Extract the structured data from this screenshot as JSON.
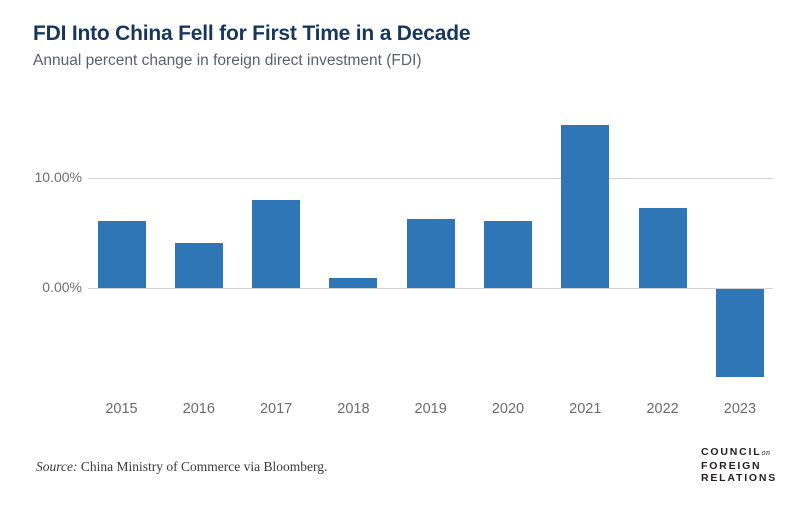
{
  "header": {
    "title": "FDI Into China Fell for First Time in a Decade",
    "subtitle": "Annual percent change in foreign direct investment (FDI)"
  },
  "chart_data": {
    "type": "bar",
    "title": "FDI Into China Fell for First Time in a Decade",
    "subtitle": "Annual percent change in foreign direct investment (FDI)",
    "categories": [
      "2015",
      "2016",
      "2017",
      "2018",
      "2019",
      "2020",
      "2021",
      "2022",
      "2023"
    ],
    "values": [
      6.1,
      4.1,
      8.0,
      0.9,
      6.3,
      6.1,
      14.8,
      7.3,
      -8.0
    ],
    "unit": "percent",
    "xlabel": "",
    "ylabel": "",
    "ytick_labels": [
      "10.00%",
      "0.00%"
    ],
    "ytick_values": [
      10,
      0
    ],
    "ylim": [
      -9,
      16.2
    ],
    "grid": "horizontal",
    "legend": "none",
    "bar_color": "#2e76b6"
  },
  "footer": {
    "source_prefix": "Source:",
    "source_text": " China Ministry of Commerce via Bloomberg.",
    "logo": {
      "line1": "COUNCIL",
      "line1_small": "on",
      "line2": "FOREIGN",
      "line3": "RELATIONS"
    }
  },
  "colors": {
    "bar": "#2e76b6",
    "title": "#17375e",
    "subtitle": "#58626c",
    "axis_text": "#6f6f6f",
    "gridline": "#d2d2d2",
    "source_text": "#3b3b3b",
    "logo": "#231f20"
  }
}
